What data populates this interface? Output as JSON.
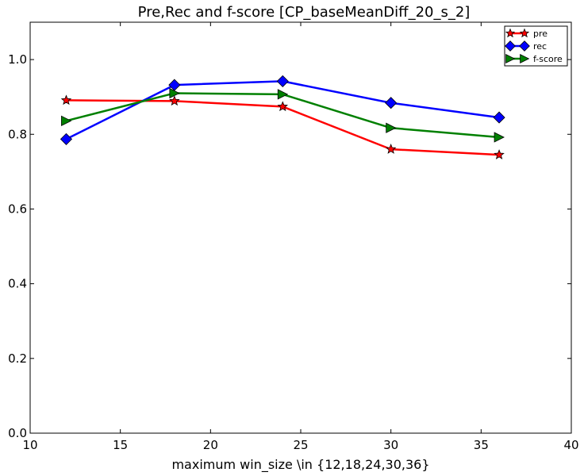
{
  "chart_data": {
    "type": "line",
    "title": "Pre,Rec and f-score [CP_baseMeanDiff_20_s_2]",
    "xlabel": "maximum win_size \\in {12,18,24,30,36}",
    "ylabel": "",
    "xlim": [
      10,
      40
    ],
    "ylim": [
      0.0,
      1.1
    ],
    "xticks": [
      10,
      15,
      20,
      25,
      30,
      35,
      40
    ],
    "yticks": [
      0.0,
      0.2,
      0.4,
      0.6,
      0.8,
      1.0
    ],
    "xtick_labels": [
      "10",
      "15",
      "20",
      "25",
      "30",
      "35",
      "40"
    ],
    "ytick_labels": [
      "0.0",
      "0.2",
      "0.4",
      "0.6",
      "0.8",
      "1.0"
    ],
    "grid": false,
    "legend_position": "top-right",
    "x": [
      12,
      18,
      24,
      30,
      36
    ],
    "series": [
      {
        "name": "pre",
        "color": "#ff0000",
        "marker": "star",
        "values": [
          0.891,
          0.889,
          0.874,
          0.76,
          0.745
        ]
      },
      {
        "name": "rec",
        "color": "#0000ff",
        "marker": "diamond",
        "values": [
          0.787,
          0.932,
          0.942,
          0.884,
          0.845
        ]
      },
      {
        "name": "f-score",
        "color": "#008000",
        "marker": "triangle-right",
        "values": [
          0.836,
          0.91,
          0.907,
          0.817,
          0.792
        ]
      }
    ]
  }
}
